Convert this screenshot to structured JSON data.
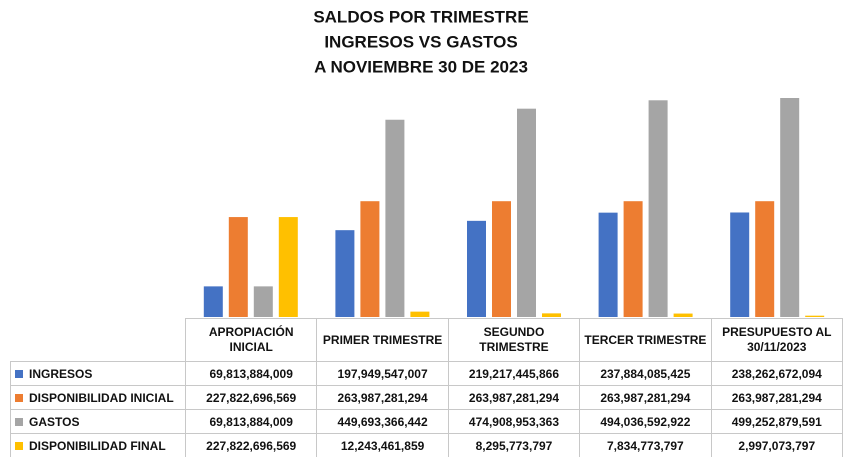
{
  "chart_data": {
    "type": "bar",
    "title": [
      "SALDOS POR TRIMESTRE",
      "INGRESOS VS GASTOS",
      "A NOVIEMBRE 30 DE 2023"
    ],
    "categories": [
      "APROPIACIÓN INICIAL",
      "PRIMER TRIMESTRE",
      "SEGUNDO TRIMESTRE",
      "TERCER TRIMESTRE",
      "PRESUPUESTO AL 30/11/2023"
    ],
    "series": [
      {
        "name": "INGRESOS",
        "color": "#4472c4",
        "values": [
          69813884009,
          197949547007,
          219217445866,
          237884085425,
          238262672094
        ],
        "value_labels": [
          "69,813,884,009",
          "197,949,547,007",
          "219,217,445,866",
          "237,884,085,425",
          "238,262,672,094"
        ]
      },
      {
        "name": "DISPONIBILIDAD INICIAL",
        "color": "#ed7d31",
        "values": [
          227822696569,
          263987281294,
          263987281294,
          263987281294,
          263987281294
        ],
        "value_labels": [
          "227,822,696,569",
          "263,987,281,294",
          "263,987,281,294",
          "263,987,281,294",
          "263,987,281,294"
        ]
      },
      {
        "name": "GASTOS",
        "color": "#a5a5a5",
        "values": [
          69813884009,
          449693366442,
          474908953363,
          494036592922,
          499252879591
        ],
        "value_labels": [
          "69,813,884,009",
          "449,693,366,442",
          "474,908,953,363",
          "494,036,592,922",
          "499,252,879,591"
        ]
      },
      {
        "name": "DISPONIBILIDAD FINAL",
        "color": "#ffc000",
        "values": [
          227822696569,
          12243461859,
          8295773797,
          7834773797,
          2997073797
        ],
        "value_labels": [
          "227,822,696,569",
          "12,243,461,859",
          "8,295,773,797",
          "7,834,773,797",
          "2,997,073,797"
        ]
      }
    ]
  }
}
